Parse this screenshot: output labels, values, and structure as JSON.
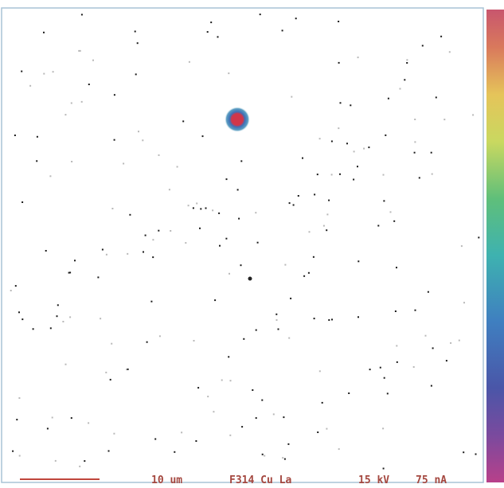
{
  "scale_bar_label": "10 um",
  "map_label": "F314 Cu La",
  "beam_voltage": "15 kV",
  "beam_current": "75 nA"
}
